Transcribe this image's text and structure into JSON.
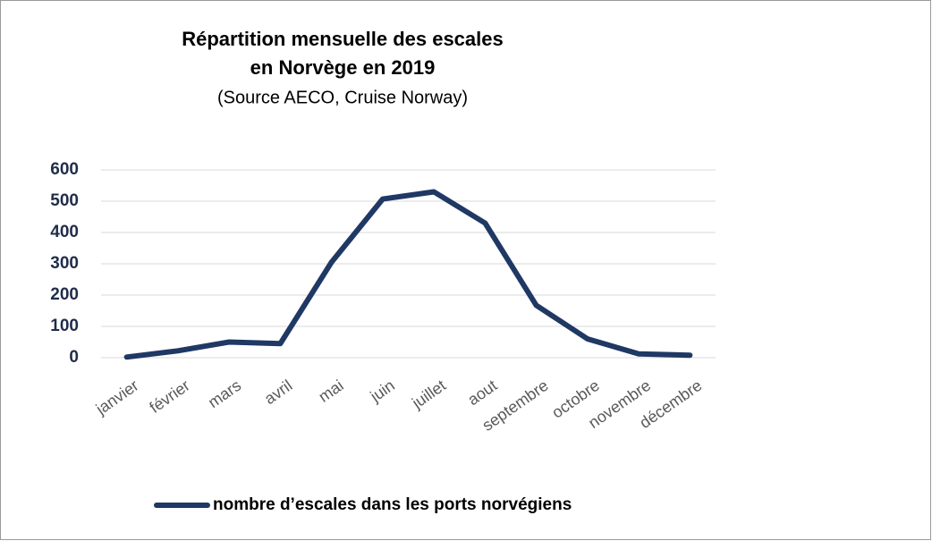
{
  "chart_data": {
    "type": "line",
    "title": [
      "Répartition mensuelle des escales",
      "en Norvège en 2019"
    ],
    "subtitle": "(Source AECO, Cruise Norway)",
    "categories": [
      "janvier",
      "février",
      "mars",
      "avril",
      "mai",
      "juin",
      "juillet",
      "aout",
      "septembre",
      "octobre",
      "novembre",
      "décembre"
    ],
    "series": [
      {
        "name": "nombre d’escales dans les ports norvégiens",
        "color": "#1f3864",
        "values": [
          2,
          22,
          50,
          45,
          305,
          507,
          530,
          430,
          167,
          60,
          12,
          8
        ]
      }
    ],
    "ylim": [
      0,
      600
    ],
    "yticks": [
      0,
      100,
      200,
      300,
      400,
      500,
      600
    ],
    "grid": true,
    "legend": "bottom"
  }
}
